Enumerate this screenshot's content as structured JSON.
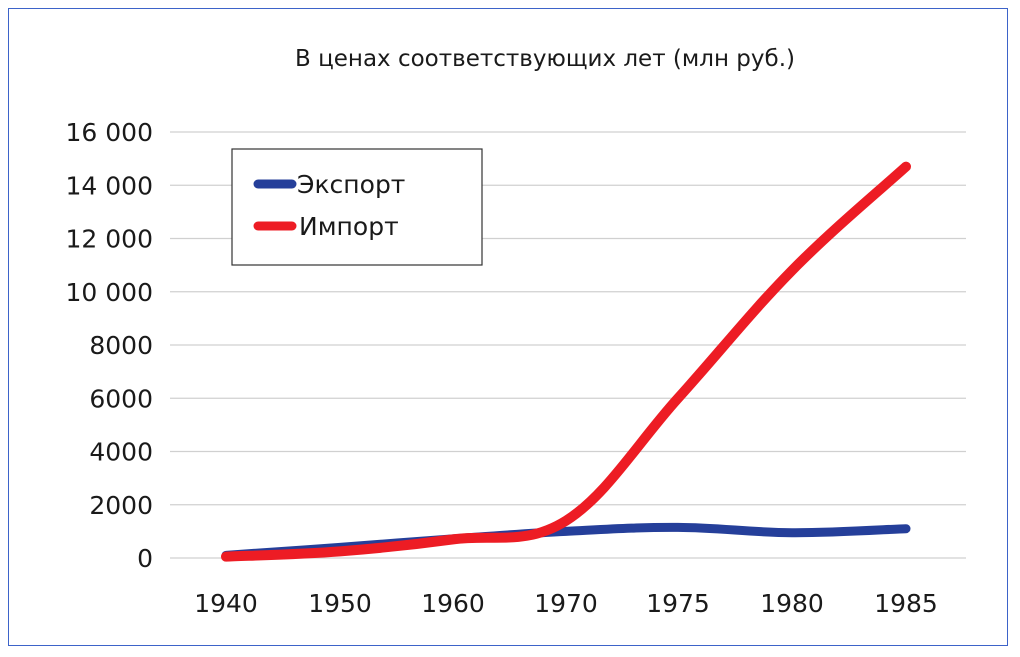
{
  "chart_data": {
    "type": "line",
    "title": "В ценах соответствующих лет (млн руб.)",
    "xlabel": "",
    "ylabel": "",
    "x": [
      1940,
      1950,
      1960,
      1970,
      1975,
      1980,
      1985
    ],
    "x_tick_labels": [
      "1940",
      "1950",
      "1960",
      "1970",
      "1975",
      "1980",
      "1985"
    ],
    "y_ticks": [
      0,
      2000,
      4000,
      6000,
      8000,
      10000,
      12000,
      14000,
      16000
    ],
    "y_tick_labels": [
      "0",
      "2000",
      "4000",
      "6000",
      "8000",
      "10 000",
      "12 000",
      "14 000",
      "16 000"
    ],
    "ylim": [
      0,
      16000
    ],
    "grid": true,
    "legend_position": "top-left",
    "series": [
      {
        "name": "Экспорт",
        "color": "#253f9a",
        "values": [
          100,
          400,
          720,
          1000,
          1150,
          950,
          1100
        ]
      },
      {
        "name": "Импорт",
        "color": "#ed1c24",
        "values": [
          50,
          250,
          700,
          1400,
          6000,
          10800,
          14700
        ]
      }
    ]
  }
}
